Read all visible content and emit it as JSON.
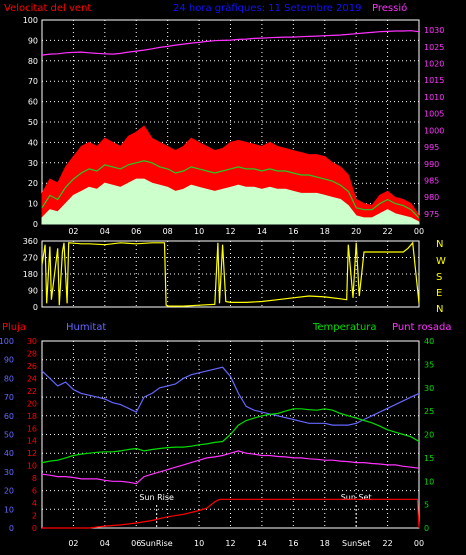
{
  "colors": {
    "bg": "#000000",
    "frame": "#ffffff",
    "grid": "#ffffff",
    "wind_label": "#ff0000",
    "title": "#1111ff",
    "pressure": "#ff33ff",
    "wind_gust": "#ff0000",
    "wind_avg": "#22cc22",
    "wind_min": "#ccffcc",
    "direction": "#ffff00",
    "rain": "#ff0000",
    "humidity": "#6666ff",
    "temperature": "#00dd00",
    "dewpoint": "#ff33ff",
    "sun_marker": "#ffffff",
    "xtick": "#ffffff"
  },
  "header": {
    "wind_label": "Velocitat del vent",
    "title": "24 hora gràfiques: 11 Setembre 2019",
    "pressure_label": "Pressió"
  },
  "bottom_labels": {
    "rain": "Pluja",
    "humidity": "Humitat",
    "temperature": "Temperatura",
    "dewpoint": "Punt rosada"
  },
  "compass": [
    "N",
    "W",
    "S",
    "E",
    "N"
  ],
  "sun": {
    "rise_label": "Sun Rise",
    "set_label": "Sun Set",
    "rise_tick": "SunRise",
    "set_tick": "SunSet",
    "rise_hour": 7.3,
    "set_hour": 20.0
  },
  "chart_data": [
    {
      "type": "line",
      "name": "wind-pressure",
      "x_ticks": [
        "02",
        "04",
        "06",
        "08",
        "10",
        "12",
        "14",
        "16",
        "18",
        "20",
        "22",
        "00"
      ],
      "xlim": [
        0,
        24
      ],
      "left_axis": {
        "ticks": [
          0,
          10,
          20,
          30,
          40,
          50,
          60,
          70,
          80,
          90,
          100
        ],
        "range": [
          0,
          100
        ]
      },
      "right_axis": {
        "ticks": [
          975,
          980,
          985,
          990,
          995,
          1000,
          1005,
          1010,
          1015,
          1020,
          1025,
          1030
        ],
        "range": [
          972,
          1033
        ]
      },
      "series": [
        {
          "key": "pressure",
          "axis": "right",
          "x": [
            0,
            0.5,
            1,
            1.5,
            2,
            2.5,
            3,
            3.5,
            4,
            4.5,
            5,
            5.5,
            6,
            6.5,
            7,
            7.5,
            8,
            8.5,
            9,
            9.5,
            10,
            10.5,
            11,
            11.5,
            12,
            12.5,
            13,
            13.5,
            14,
            14.5,
            15,
            15.5,
            16,
            16.5,
            17,
            17.5,
            18,
            18.5,
            19,
            19.5,
            20,
            20.5,
            21,
            21.5,
            22,
            22.5,
            23,
            23.5,
            24
          ],
          "values": [
            1022.5,
            1022.8,
            1022.9,
            1023.2,
            1023.3,
            1023.4,
            1023.2,
            1023.0,
            1022.9,
            1022.8,
            1023.0,
            1023.4,
            1023.7,
            1024.0,
            1024.4,
            1024.8,
            1025.1,
            1025.5,
            1025.8,
            1026.1,
            1026.3,
            1026.6,
            1026.8,
            1026.9,
            1027.0,
            1027.2,
            1027.3,
            1027.5,
            1027.6,
            1027.7,
            1027.8,
            1027.9,
            1027.9,
            1028.0,
            1028.1,
            1028.2,
            1028.3,
            1028.4,
            1028.5,
            1028.7,
            1028.9,
            1029.1,
            1029.3,
            1029.5,
            1029.6,
            1029.7,
            1029.7,
            1029.8,
            1029.5
          ]
        },
        {
          "key": "wind_gust",
          "axis": "left",
          "fill": true,
          "x": [
            0,
            0.5,
            1,
            1.5,
            2,
            2.5,
            3,
            3.5,
            4,
            4.5,
            5,
            5.5,
            6,
            6.5,
            7,
            7.5,
            8,
            8.5,
            9,
            9.5,
            10,
            10.5,
            11,
            11.5,
            12,
            12.5,
            13,
            13.5,
            14,
            14.5,
            15,
            15.5,
            16,
            16.5,
            17,
            17.5,
            18,
            18.5,
            19,
            19.5,
            20,
            20.5,
            21,
            21.5,
            22,
            22.5,
            23,
            23.5,
            24
          ],
          "values": [
            15,
            22,
            20,
            28,
            33,
            38,
            40,
            38,
            42,
            40,
            38,
            43,
            45,
            48,
            42,
            40,
            38,
            36,
            38,
            42,
            40,
            38,
            36,
            37,
            40,
            41,
            40,
            39,
            38,
            40,
            38,
            37,
            36,
            35,
            34,
            34,
            33,
            30,
            28,
            24,
            12,
            10,
            9,
            14,
            16,
            13,
            12,
            10,
            4
          ]
        },
        {
          "key": "wind_avg",
          "axis": "left",
          "x": [
            0,
            0.5,
            1,
            1.5,
            2,
            2.5,
            3,
            3.5,
            4,
            4.5,
            5,
            5.5,
            6,
            6.5,
            7,
            7.5,
            8,
            8.5,
            9,
            9.5,
            10,
            10.5,
            11,
            11.5,
            12,
            12.5,
            13,
            13.5,
            14,
            14.5,
            15,
            15.5,
            16,
            16.5,
            17,
            17.5,
            18,
            18.5,
            19,
            19.5,
            20,
            20.5,
            21,
            21.5,
            22,
            22.5,
            23,
            23.5,
            24
          ],
          "values": [
            8,
            14,
            12,
            18,
            22,
            25,
            27,
            26,
            29,
            28,
            27,
            29,
            30,
            31,
            30,
            28,
            27,
            25,
            26,
            28,
            27,
            26,
            25,
            26,
            27,
            28,
            27,
            27,
            26,
            27,
            26,
            26,
            25,
            24,
            24,
            23,
            22,
            21,
            19,
            16,
            8,
            7,
            7,
            10,
            12,
            10,
            9,
            7,
            3
          ]
        },
        {
          "key": "wind_min",
          "axis": "left",
          "fill": true,
          "x": [
            0,
            0.5,
            1,
            1.5,
            2,
            2.5,
            3,
            3.5,
            4,
            4.5,
            5,
            5.5,
            6,
            6.5,
            7,
            7.5,
            8,
            8.5,
            9,
            9.5,
            10,
            10.5,
            11,
            11.5,
            12,
            12.5,
            13,
            13.5,
            14,
            14.5,
            15,
            15.5,
            16,
            16.5,
            17,
            17.5,
            18,
            18.5,
            19,
            19.5,
            20,
            20.5,
            21,
            21.5,
            22,
            22.5,
            23,
            23.5,
            24
          ],
          "values": [
            3,
            7,
            6,
            10,
            14,
            16,
            18,
            17,
            20,
            19,
            18,
            20,
            22,
            22,
            20,
            19,
            18,
            16,
            17,
            19,
            18,
            17,
            16,
            17,
            18,
            19,
            18,
            18,
            17,
            18,
            17,
            17,
            16,
            15,
            15,
            15,
            14,
            13,
            12,
            9,
            4,
            3,
            3,
            5,
            7,
            5,
            4,
            3,
            1
          ]
        }
      ]
    },
    {
      "type": "line",
      "name": "wind-direction",
      "xlim": [
        0,
        24
      ],
      "left_axis": {
        "ticks": [
          0,
          90,
          180,
          270,
          360
        ],
        "range": [
          0,
          360
        ]
      },
      "series": [
        {
          "key": "direction",
          "x": [
            0,
            0.2,
            0.3,
            0.5,
            0.6,
            1.0,
            1.1,
            1.3,
            1.4,
            1.6,
            1.7,
            2.5,
            3,
            4,
            5,
            6,
            7,
            7.8,
            7.9,
            8,
            9,
            10,
            11,
            11.2,
            11.3,
            11.5,
            11.7,
            12,
            13,
            14,
            15,
            16,
            17,
            18,
            19,
            19.4,
            19.5,
            19.8,
            20.0,
            20.2,
            20.5,
            20.7,
            21,
            22,
            23,
            23.3,
            23.6,
            24
          ],
          "values": [
            230,
            340,
            20,
            330,
            40,
            320,
            10,
            300,
            350,
            20,
            350,
            345,
            345,
            340,
            350,
            345,
            350,
            350,
            10,
            5,
            5,
            10,
            15,
            350,
            20,
            340,
            30,
            25,
            25,
            30,
            40,
            50,
            60,
            55,
            45,
            40,
            340,
            50,
            350,
            60,
            300,
            300,
            300,
            300,
            300,
            320,
            350,
            20
          ]
        }
      ]
    },
    {
      "type": "line",
      "name": "climate",
      "xlim": [
        0,
        24
      ],
      "axes": {
        "humidity": {
          "ticks": [
            0,
            10,
            20,
            30,
            40,
            50,
            60,
            70,
            80,
            90,
            100
          ],
          "range": [
            0,
            100
          ]
        },
        "rain": {
          "ticks": [
            0,
            2,
            4,
            6,
            8,
            10,
            12,
            14,
            16,
            18,
            20,
            22,
            24,
            26,
            28,
            30
          ],
          "range": [
            0,
            30
          ]
        },
        "temp": {
          "ticks": [
            0,
            5,
            10,
            15,
            20,
            25,
            30,
            35,
            40
          ],
          "range": [
            0,
            40
          ]
        }
      },
      "series": [
        {
          "key": "humidity",
          "axis": "humidity",
          "x": [
            0,
            0.5,
            1,
            1.5,
            2,
            2.5,
            3,
            3.5,
            4,
            4.5,
            5,
            5.5,
            6,
            6.5,
            7,
            7.5,
            8,
            8.5,
            9,
            9.5,
            10,
            10.5,
            11,
            11.5,
            12,
            12.5,
            13,
            13.5,
            14,
            14.5,
            15,
            15.5,
            16,
            16.5,
            17,
            17.5,
            18,
            18.5,
            19,
            19.5,
            20,
            20.5,
            21,
            21.5,
            22,
            22.5,
            23,
            23.5,
            24
          ],
          "values": [
            84,
            80,
            76,
            78,
            74,
            72,
            71,
            70,
            69,
            67,
            66,
            64,
            62,
            70,
            72,
            75,
            76,
            77,
            80,
            82,
            83,
            84,
            85,
            86,
            81,
            72,
            65,
            63,
            62,
            61,
            60,
            59,
            58,
            57,
            56,
            56,
            56,
            55,
            55,
            55,
            56,
            58,
            60,
            62,
            64,
            66,
            68,
            70,
            72
          ]
        },
        {
          "key": "temperature",
          "axis": "temp",
          "x": [
            0,
            0.5,
            1,
            1.5,
            2,
            2.5,
            3,
            3.5,
            4,
            4.5,
            5,
            5.5,
            6,
            6.5,
            7,
            7.5,
            8,
            8.5,
            9,
            9.5,
            10,
            10.5,
            11,
            11.5,
            12,
            12.5,
            13,
            13.5,
            14,
            14.5,
            15,
            15.5,
            16,
            16.5,
            17,
            17.5,
            18,
            18.5,
            19,
            19.5,
            20,
            20.5,
            21,
            21.5,
            22,
            22.5,
            23,
            23.5,
            24
          ],
          "values": [
            14.0,
            14.3,
            14.5,
            15.0,
            15.5,
            15.8,
            16.0,
            16.2,
            16.3,
            16.3,
            16.5,
            16.8,
            17.0,
            16.5,
            16.8,
            17.0,
            17.2,
            17.3,
            17.3,
            17.5,
            17.8,
            18.0,
            18.3,
            18.5,
            20.0,
            22.0,
            23.0,
            23.5,
            24.0,
            24.3,
            24.5,
            25.0,
            25.5,
            25.5,
            25.3,
            25.2,
            25.5,
            25.2,
            24.5,
            24.0,
            23.5,
            23.0,
            22.5,
            21.8,
            21.0,
            20.5,
            20.0,
            19.5,
            18.5
          ]
        },
        {
          "key": "dewpoint",
          "axis": "temp",
          "x": [
            0,
            0.5,
            1,
            1.5,
            2,
            2.5,
            3,
            3.5,
            4,
            4.5,
            5,
            5.5,
            6,
            6.5,
            7,
            7.5,
            8,
            8.5,
            9,
            9.5,
            10,
            10.5,
            11,
            11.5,
            12,
            12.5,
            13,
            13.5,
            14,
            14.5,
            15,
            15.5,
            16,
            16.5,
            17,
            17.5,
            18,
            18.5,
            19,
            19.5,
            20,
            20.5,
            21,
            21.5,
            22,
            22.5,
            23,
            23.5,
            24
          ],
          "values": [
            11.5,
            11.3,
            11.0,
            11.0,
            10.8,
            10.5,
            10.5,
            10.5,
            10.2,
            10.0,
            10.0,
            9.8,
            9.5,
            11.0,
            11.5,
            12.0,
            12.5,
            13.0,
            13.5,
            14.0,
            14.5,
            15.0,
            15.2,
            15.5,
            16.0,
            16.5,
            16.0,
            15.8,
            15.5,
            15.5,
            15.3,
            15.2,
            15.0,
            15.0,
            14.8,
            14.7,
            14.5,
            14.5,
            14.3,
            14.2,
            14.0,
            14.0,
            13.8,
            13.7,
            13.5,
            13.5,
            13.2,
            13.0,
            12.8
          ]
        },
        {
          "key": "rain",
          "axis": "rain",
          "x": [
            0,
            3,
            4,
            5,
            6,
            7,
            7.5,
            8,
            9,
            10,
            10.5,
            11,
            11.3,
            12,
            16,
            20,
            23.9,
            24
          ],
          "values": [
            0,
            0,
            0.3,
            0.5,
            0.8,
            1.2,
            1.5,
            1.8,
            2.2,
            2.8,
            3.2,
            4.2,
            4.6,
            4.6,
            4.6,
            4.6,
            4.6,
            0
          ]
        }
      ]
    }
  ]
}
